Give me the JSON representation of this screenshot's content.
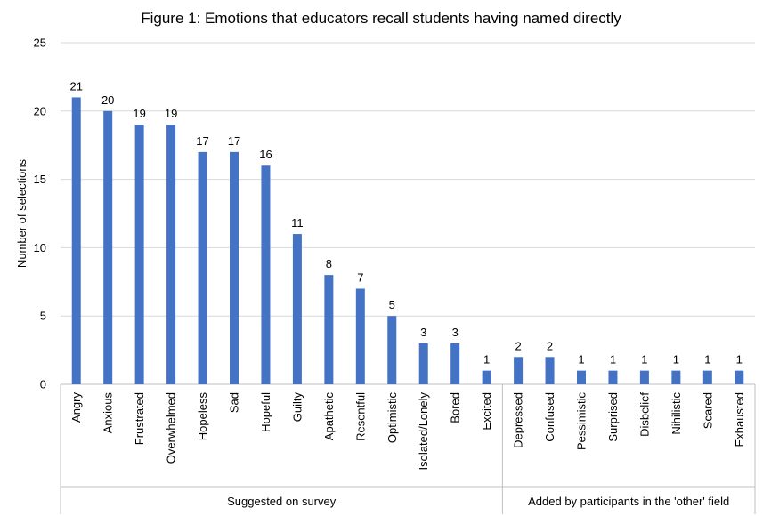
{
  "chart_data": {
    "type": "bar",
    "title": "Figure 1: Emotions that educators recall students having named directly",
    "xlabel": "",
    "ylabel": "Number of selections",
    "ylim": [
      0,
      25
    ],
    "yticks": [
      0,
      5,
      10,
      15,
      20,
      25
    ],
    "grid": true,
    "legend": "none",
    "bar_color": "#4472C4",
    "categories": [
      "Angry",
      "Anxious",
      "Frustrated",
      "Overwhelmed",
      "Hopeless",
      "Sad",
      "Hopeful",
      "Guilty",
      "Apathetic",
      "Resentful",
      "Optimistic",
      "Isolated/Lonely",
      "Bored",
      "Excited",
      "Depressed",
      "Confused",
      "Pessimistic",
      "Surprised",
      "Disbelief",
      "Nihilistic",
      "Scared",
      "Exhausted"
    ],
    "values": [
      21,
      20,
      19,
      19,
      17,
      17,
      16,
      11,
      8,
      7,
      5,
      3,
      3,
      1,
      2,
      2,
      1,
      1,
      1,
      1,
      1,
      1
    ],
    "groups": [
      {
        "label": "Suggested on survey",
        "count": 14
      },
      {
        "label": "Added by participants in the 'other' field",
        "count": 8
      }
    ]
  }
}
